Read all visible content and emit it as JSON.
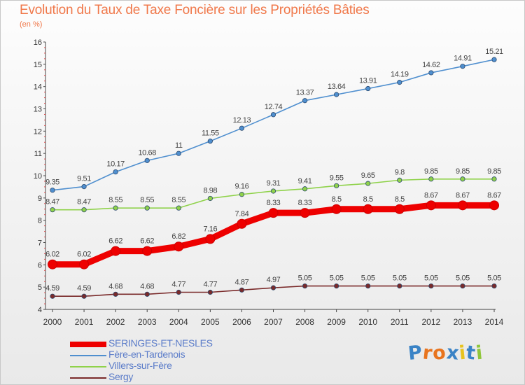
{
  "header": {
    "title": "Evolution du Taux de Taxe Foncière sur les Propriétés Bâties",
    "unit": "(en %)"
  },
  "logo": {
    "text": "Proxiti",
    "colors": [
      "#3a83c6",
      "#e8741e",
      "#e8741e",
      "#3a83c6",
      "#e8c31e",
      "#3a83c6",
      "#8fc63a"
    ]
  },
  "chart_data": {
    "type": "line",
    "x": [
      2000,
      2001,
      2002,
      2003,
      2004,
      2005,
      2006,
      2007,
      2008,
      2009,
      2010,
      2011,
      2012,
      2013,
      2014
    ],
    "ylim": [
      4,
      16
    ],
    "yticks": [
      4,
      5,
      6,
      7,
      8,
      9,
      10,
      11,
      12,
      13,
      14,
      15,
      16
    ],
    "grid": false,
    "legend_position": "bottom-left",
    "series": [
      {
        "name": "SERINGES-ET-NESLES",
        "color": "#ee0000",
        "emphasis": true,
        "values": [
          6.02,
          6.02,
          6.62,
          6.62,
          6.82,
          7.16,
          7.84,
          8.33,
          8.33,
          8.5,
          8.5,
          8.5,
          8.67,
          8.67,
          8.67
        ],
        "labels": [
          "6.02",
          "6.02",
          "6.62",
          "6.62",
          "6.82",
          "7.16",
          "7.84",
          "8.33",
          "8.33",
          "8.5",
          "8.5",
          "8.5",
          "8.67",
          "8.67",
          "8.67"
        ]
      },
      {
        "name": "Fère-en-Tardenois",
        "color": "#4f8fcf",
        "emphasis": false,
        "values": [
          9.35,
          9.51,
          10.17,
          10.68,
          11,
          11.55,
          12.13,
          12.74,
          13.37,
          13.64,
          13.91,
          14.19,
          14.62,
          14.91,
          15.21
        ],
        "labels": [
          "9.35",
          "9.51",
          "10.17",
          "10.68",
          "11",
          "11.55",
          "12.13",
          "12.74",
          "13.37",
          "13.64",
          "13.91",
          "14.19",
          "14.62",
          "14.91",
          "15.21"
        ]
      },
      {
        "name": "Villers-sur-Fère",
        "color": "#8fd24a",
        "emphasis": false,
        "values": [
          8.47,
          8.47,
          8.55,
          8.55,
          8.55,
          8.98,
          9.16,
          9.31,
          9.41,
          9.55,
          9.65,
          9.8,
          9.85,
          9.85,
          9.85
        ],
        "labels": [
          "8.47",
          "8.47",
          "8.55",
          "8.55",
          "8.55",
          "8.98",
          "9.16",
          "9.31",
          "9.41",
          "9.55",
          "9.65",
          "9.8",
          "9.85",
          "9.85",
          "9.85"
        ]
      },
      {
        "name": "Sergy",
        "color": "#7a2a2a",
        "emphasis": false,
        "values": [
          4.59,
          4.59,
          4.68,
          4.68,
          4.77,
          4.77,
          4.87,
          4.97,
          5.05,
          5.05,
          5.05,
          5.05,
          5.05,
          5.05,
          5.05
        ],
        "labels": [
          "4.59",
          "4.59",
          "4.68",
          "4.68",
          "4.77",
          "4.77",
          "4.87",
          "4.97",
          "5.05",
          "5.05",
          "5.05",
          "5.05",
          "5.05",
          "5.05",
          "5.05"
        ]
      }
    ]
  }
}
